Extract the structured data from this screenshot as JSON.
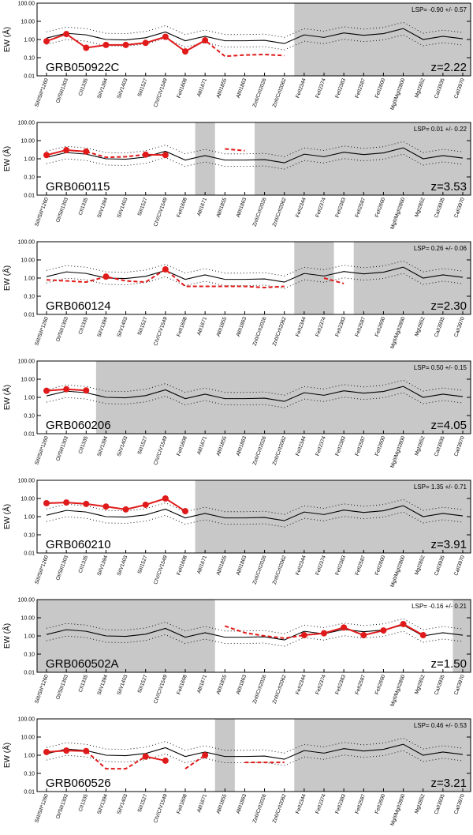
{
  "colors": {
    "observed": "#e01a1a",
    "composite": "#000000",
    "masked": "#c8c8c8"
  },
  "chart_data": {
    "type": "line",
    "ylabel": "EW (Å)",
    "yscale": "log",
    "ylim": [
      0.01,
      100
    ],
    "yticks": [
      "100.00",
      "10.00",
      "1.00",
      "0.10",
      "0.01"
    ],
    "categories": [
      "SiII/SiII*1260",
      "OI/SiII1303",
      "CII1335",
      "SiIV1394",
      "SiIV1403",
      "SiII1527",
      "CIV/CIV1549",
      "FeII1608",
      "AlII1671",
      "AlIII1855",
      "AlIII1863",
      "ZnII/CrII2026",
      "ZnII/CrII2062",
      "FeII2344",
      "FeII2374",
      "FeII2383",
      "FeII2587",
      "FeII2600",
      "MgII/MgII2800",
      "MgI2852",
      "CaII3935",
      "CaII3970"
    ],
    "composite": [
      1.2,
      2.2,
      1.8,
      1.0,
      0.95,
      1.25,
      2.6,
      0.85,
      1.5,
      0.85,
      0.85,
      0.9,
      0.6,
      1.8,
      1.3,
      2.3,
      1.7,
      2.1,
      4.0,
      1.0,
      1.5,
      1.1
    ],
    "panels": [
      {
        "grb": "GRB050922C",
        "z": "z=2.22",
        "lsp": "LSP= -0.90 +/- 0.57",
        "masked_from": 12.5,
        "masked_to": 22,
        "ew": [
          0.8,
          2.0,
          0.35,
          0.5,
          0.5,
          0.65,
          1.4,
          0.22,
          0.9,
          null,
          null,
          null,
          null,
          null,
          null,
          null,
          null,
          null,
          null,
          null,
          null,
          null
        ],
        "dash": [
          null,
          null,
          null,
          null,
          null,
          null,
          null,
          0.22,
          0.9,
          0.12,
          0.14,
          0.15,
          0.13,
          null,
          null,
          null,
          null,
          null,
          null,
          null,
          null,
          null
        ]
      },
      {
        "grb": "GRB060115",
        "z": "z=3.53",
        "lsp": "LSP= 0.01 +/- 0.22",
        "masked_from": 7.5,
        "masked_to": 8.5,
        "masked2_from": 10.5,
        "masked2_to": 22,
        "ew": [
          1.6,
          3.0,
          2.5,
          null,
          null,
          1.7,
          1.6,
          null,
          null,
          null,
          null,
          null,
          null,
          null,
          null,
          null,
          null,
          null,
          null,
          null,
          null,
          null
        ],
        "dash": [
          null,
          null,
          2.5,
          1.2,
          1.3,
          1.7,
          null,
          null,
          null,
          3.5,
          2.8,
          null,
          null,
          null,
          null,
          null,
          null,
          null,
          null,
          null,
          null,
          null
        ]
      },
      {
        "grb": "GRB060124",
        "z": "z=2.30",
        "lsp": "LSP= 0.26 +/- 0.06",
        "masked_from": 12.5,
        "masked_to": 14.5,
        "masked2_from": 15.5,
        "masked2_to": 22,
        "ew": [
          null,
          null,
          null,
          1.2,
          null,
          null,
          3.0,
          null,
          null,
          null,
          null,
          null,
          null,
          null,
          null,
          null,
          null,
          null,
          null,
          null,
          null,
          null
        ],
        "dash": [
          0.8,
          0.7,
          0.6,
          1.2,
          0.7,
          0.6,
          3.0,
          0.35,
          0.35,
          0.35,
          0.35,
          0.3,
          0.35,
          null,
          1.0,
          0.5,
          null,
          null,
          null,
          null,
          null,
          null
        ]
      },
      {
        "grb": "GRB060206",
        "z": "z=4.05",
        "lsp": "LSP= 0.50 +/- 0.15",
        "masked_from": 2.5,
        "masked_to": 22,
        "ew": [
          2.3,
          2.8,
          2.4,
          null,
          null,
          null,
          null,
          null,
          null,
          null,
          null,
          null,
          null,
          null,
          null,
          null,
          null,
          null,
          null,
          null,
          null,
          null
        ],
        "dash": [
          null,
          null,
          null,
          null,
          null,
          null,
          null,
          null,
          null,
          null,
          null,
          null,
          null,
          null,
          null,
          null,
          null,
          null,
          null,
          null,
          null,
          null
        ]
      },
      {
        "grb": "GRB060210",
        "z": "z=3.91",
        "lsp": "LSP= 1.35 +/- 0.71",
        "masked_from": 7.5,
        "masked_to": 22,
        "ew": [
          5.5,
          6.0,
          5.0,
          3.6,
          2.5,
          4.5,
          10.0,
          2.0,
          null,
          null,
          null,
          null,
          null,
          null,
          null,
          null,
          null,
          null,
          null,
          null,
          null,
          null
        ],
        "dash": [
          null,
          null,
          null,
          null,
          null,
          null,
          null,
          null,
          null,
          null,
          null,
          null,
          null,
          null,
          null,
          null,
          null,
          null,
          null,
          null,
          null,
          null
        ]
      },
      {
        "grb": "GRB060502A",
        "z": "z=1.50",
        "lsp": "LSP= -0.16 +/- 0.21",
        "masked_from": -0.5,
        "masked_to": 8.5,
        "masked2_from": 20.5,
        "masked2_to": 22,
        "ew": [
          null,
          null,
          null,
          null,
          null,
          null,
          null,
          null,
          null,
          null,
          null,
          null,
          null,
          1.1,
          1.4,
          2.9,
          1.1,
          2.0,
          4.5,
          1.1,
          null,
          null
        ],
        "dash": [
          null,
          null,
          null,
          null,
          null,
          null,
          null,
          null,
          null,
          3.5,
          1.5,
          1.0,
          0.75,
          1.1,
          null,
          2.9,
          null,
          null,
          null,
          null,
          null,
          null
        ]
      },
      {
        "grb": "GRB060526",
        "z": "z=3.21",
        "lsp": "LSP= 0.46 +/- 0.53",
        "masked_from": 8.5,
        "masked_to": 9.5,
        "masked2_from": 12.5,
        "masked2_to": 22,
        "ew": [
          1.5,
          1.8,
          1.7,
          null,
          null,
          0.85,
          0.5,
          null,
          1.0,
          null,
          null,
          null,
          null,
          null,
          null,
          null,
          null,
          null,
          null,
          null,
          null,
          null
        ],
        "dash": [
          null,
          null,
          1.7,
          0.18,
          0.18,
          0.85,
          null,
          0.18,
          1.0,
          null,
          0.4,
          0.4,
          0.4,
          null,
          null,
          null,
          null,
          null,
          null,
          null,
          null,
          null
        ]
      }
    ]
  }
}
